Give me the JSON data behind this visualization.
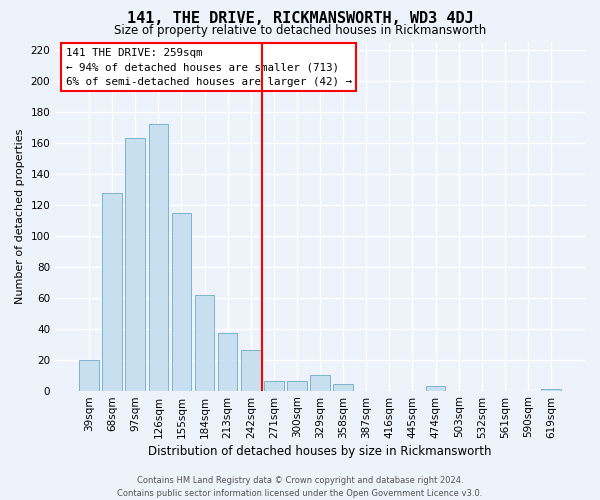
{
  "title": "141, THE DRIVE, RICKMANSWORTH, WD3 4DJ",
  "subtitle": "Size of property relative to detached houses in Rickmansworth",
  "xlabel": "Distribution of detached houses by size in Rickmansworth",
  "ylabel": "Number of detached properties",
  "bar_labels": [
    "39sqm",
    "68sqm",
    "97sqm",
    "126sqm",
    "155sqm",
    "184sqm",
    "213sqm",
    "242sqm",
    "271sqm",
    "300sqm",
    "329sqm",
    "358sqm",
    "387sqm",
    "416sqm",
    "445sqm",
    "474sqm",
    "503sqm",
    "532sqm",
    "561sqm",
    "590sqm",
    "619sqm"
  ],
  "bar_heights": [
    20,
    128,
    163,
    172,
    115,
    62,
    37,
    26,
    6,
    6,
    10,
    4,
    0,
    0,
    0,
    3,
    0,
    0,
    0,
    0,
    1
  ],
  "bar_color": "#c8dff0",
  "bar_edge_color": "#7ab4d0",
  "vline_x_index": 8,
  "vline_color": "red",
  "annotation_title": "141 THE DRIVE: 259sqm",
  "annotation_line1": "← 94% of detached houses are smaller (713)",
  "annotation_line2": "6% of semi-detached houses are larger (42) →",
  "annotation_box_color": "white",
  "annotation_box_edge_color": "red",
  "ylim": [
    0,
    225
  ],
  "yticks": [
    0,
    20,
    40,
    60,
    80,
    100,
    120,
    140,
    160,
    180,
    200,
    220
  ],
  "footer_line1": "Contains HM Land Registry data © Crown copyright and database right 2024.",
  "footer_line2": "Contains public sector information licensed under the Open Government Licence v3.0.",
  "background_color": "#eef2fa",
  "grid_color": "white",
  "title_fontsize": 11,
  "subtitle_fontsize": 8.5,
  "ylabel_fontsize": 8,
  "xlabel_fontsize": 8.5,
  "tick_fontsize": 7.5,
  "footer_fontsize": 6,
  "ann_fontsize": 7.8
}
